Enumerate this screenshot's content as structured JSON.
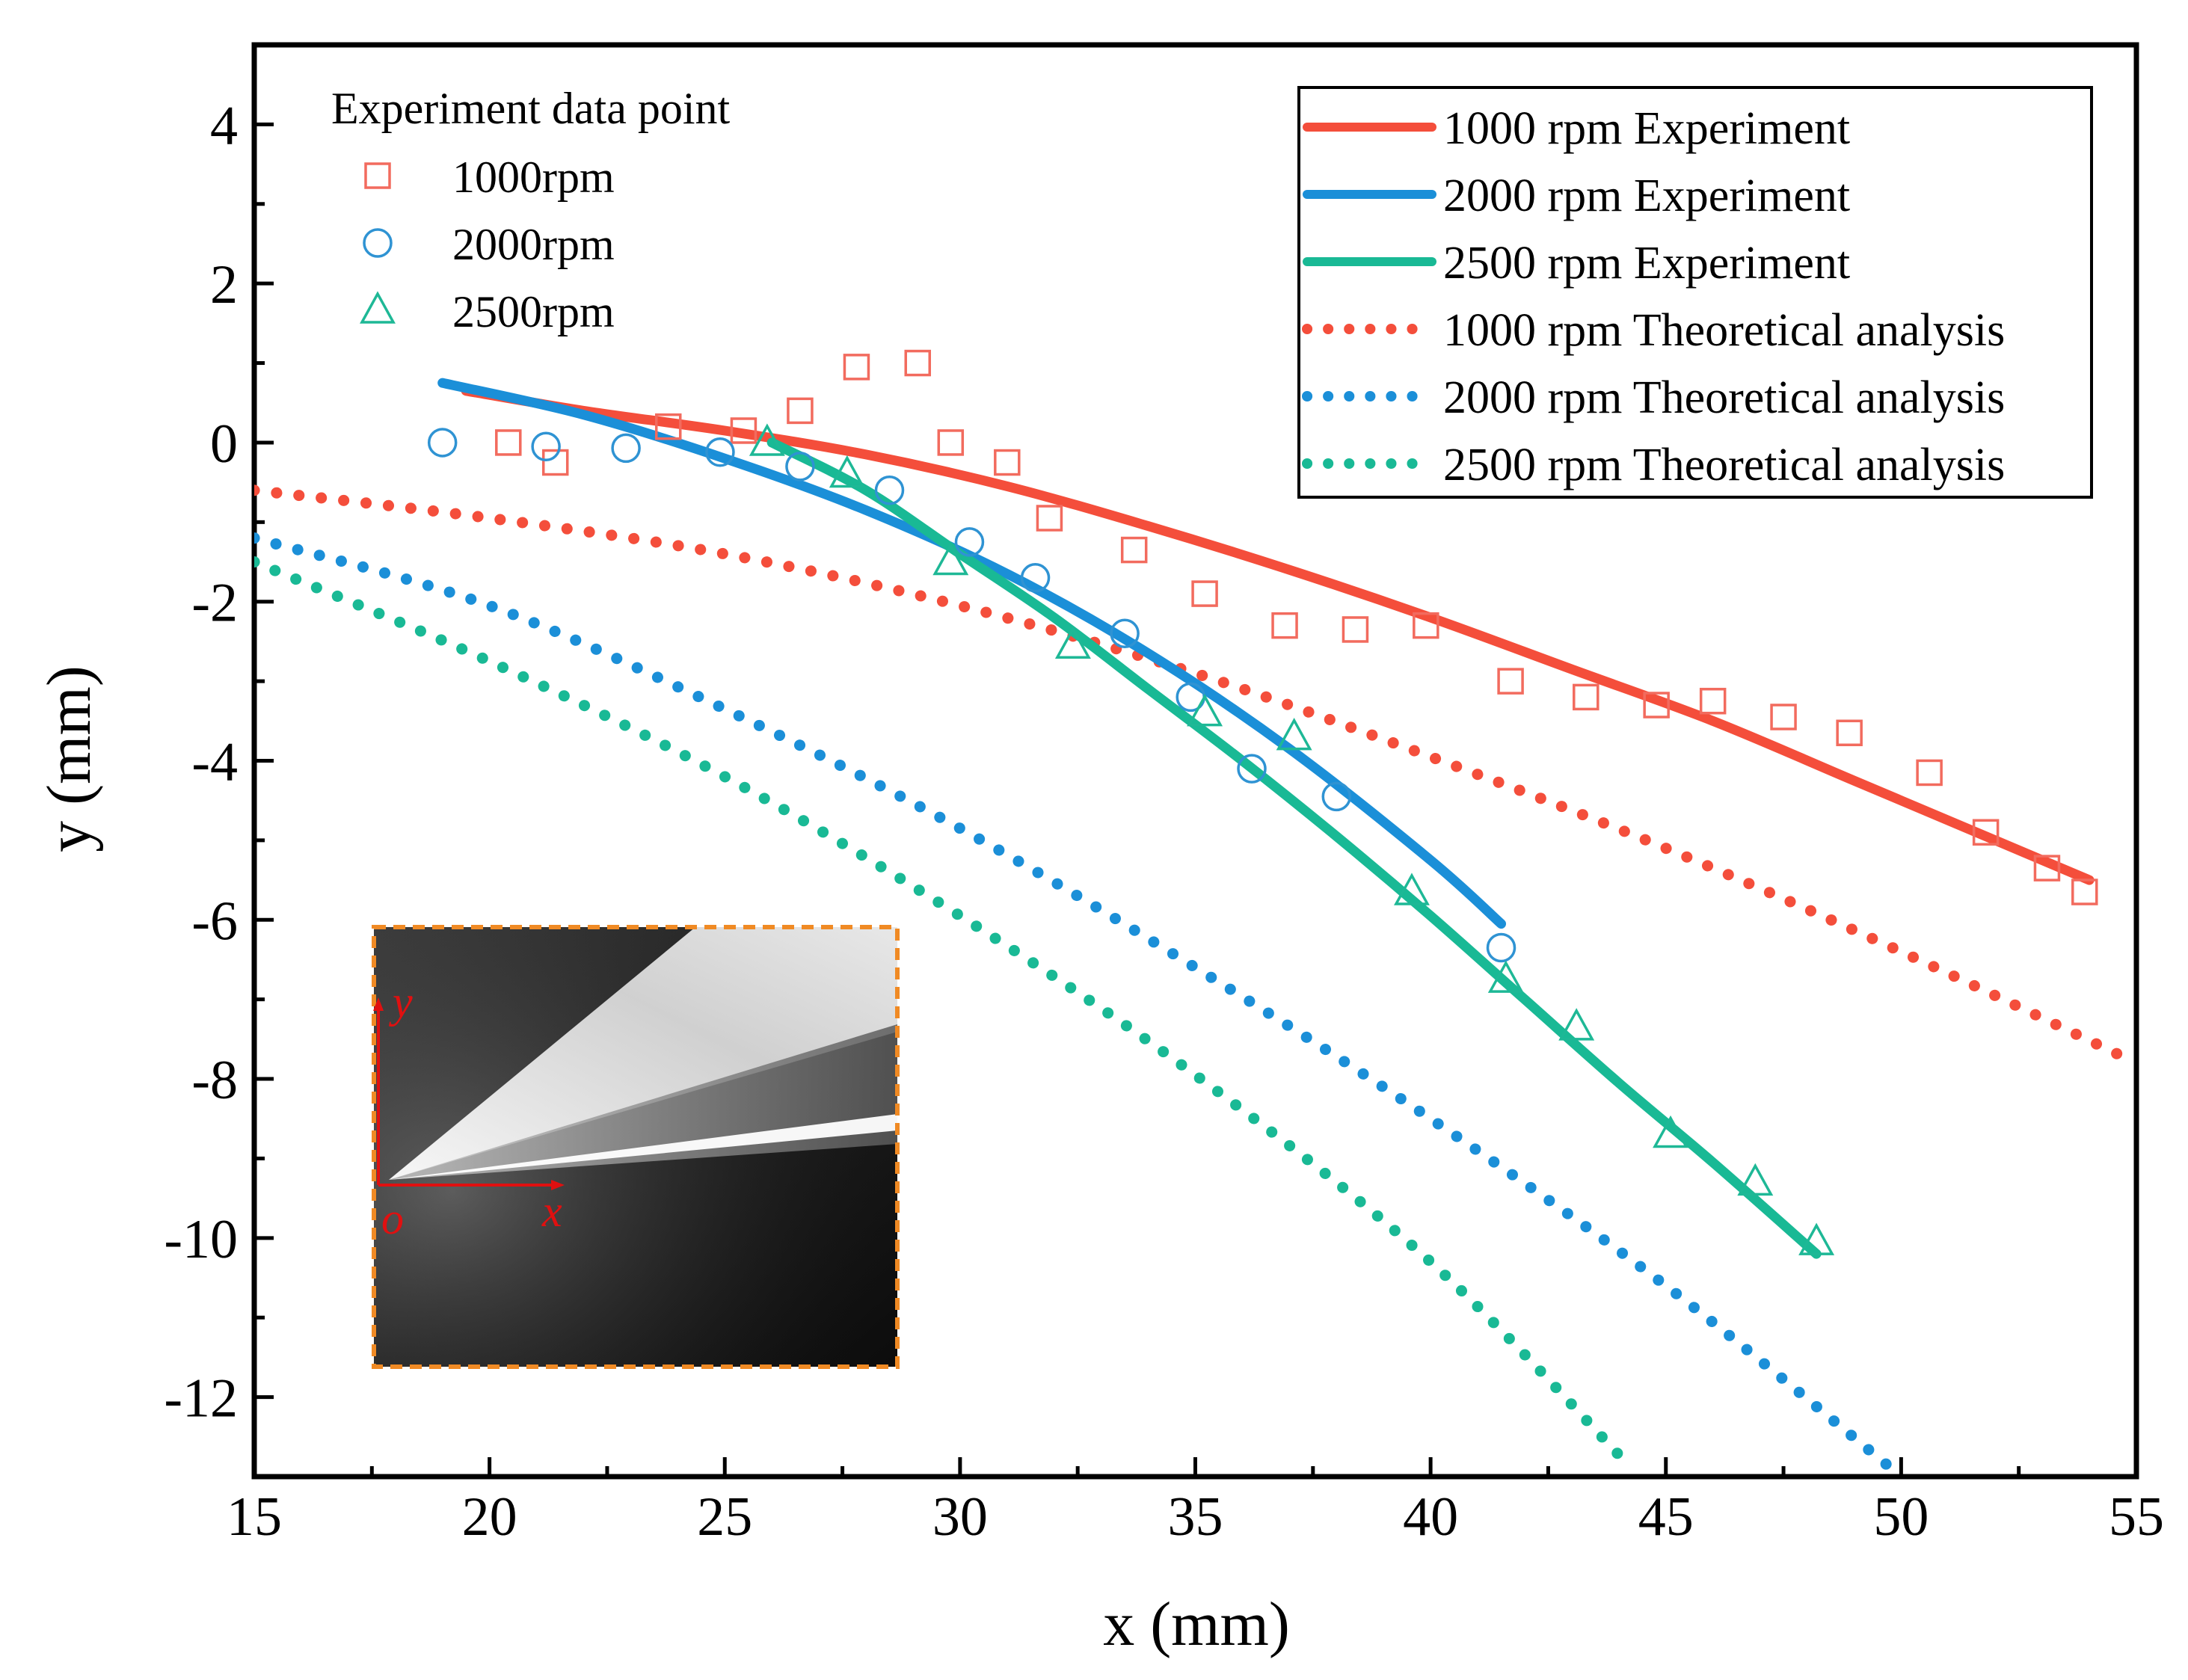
{
  "chart_data": {
    "type": "scatter",
    "xlabel": "x (mm)",
    "ylabel": "y (mm)",
    "xlim": [
      15,
      55
    ],
    "ylim": [
      -13,
      5
    ],
    "xticks": [
      15,
      20,
      25,
      30,
      35,
      40,
      45,
      50,
      55
    ],
    "yticks": [
      4,
      2,
      0,
      -2,
      -4,
      -6,
      -8,
      -10,
      -12
    ],
    "scatter_legend_title": "Experiment data point",
    "scatter_series": [
      {
        "name": "1000rpm",
        "marker": "square",
        "color": "#F26B5E",
        "points": [
          [
            20.4,
            0
          ],
          [
            21.4,
            -0.25
          ],
          [
            23.8,
            0.2
          ],
          [
            25.4,
            0.15
          ],
          [
            26.6,
            0.4
          ],
          [
            27.8,
            0.95
          ],
          [
            29.1,
            1.0
          ],
          [
            29.8,
            0
          ],
          [
            31.0,
            -0.25
          ],
          [
            31.9,
            -0.95
          ],
          [
            33.7,
            -1.35
          ],
          [
            35.2,
            -1.9
          ],
          [
            36.9,
            -2.3
          ],
          [
            38.4,
            -2.35
          ],
          [
            39.9,
            -2.3
          ],
          [
            41.7,
            -3.0
          ],
          [
            43.3,
            -3.2
          ],
          [
            44.8,
            -3.3
          ],
          [
            46.0,
            -3.25
          ],
          [
            47.5,
            -3.45
          ],
          [
            48.9,
            -3.65
          ],
          [
            50.6,
            -4.15
          ],
          [
            51.8,
            -4.9
          ],
          [
            53.1,
            -5.35
          ],
          [
            53.9,
            -5.65
          ]
        ]
      },
      {
        "name": "2000rpm",
        "marker": "circle",
        "color": "#2F93D3",
        "points": [
          [
            19.0,
            0
          ],
          [
            21.2,
            -0.05
          ],
          [
            22.9,
            -0.07
          ],
          [
            24.9,
            -0.12
          ],
          [
            26.6,
            -0.3
          ],
          [
            28.5,
            -0.6
          ],
          [
            30.2,
            -1.25
          ],
          [
            31.6,
            -1.7
          ],
          [
            33.5,
            -2.4
          ],
          [
            34.9,
            -3.2
          ],
          [
            36.2,
            -4.1
          ],
          [
            38.0,
            -4.45
          ],
          [
            41.5,
            -6.35
          ]
        ]
      },
      {
        "name": "2500rpm",
        "marker": "triangle",
        "color": "#1EB896",
        "points": [
          [
            25.9,
            0
          ],
          [
            27.6,
            -0.4
          ],
          [
            29.8,
            -1.5
          ],
          [
            32.4,
            -2.55
          ],
          [
            35.2,
            -3.4
          ],
          [
            37.1,
            -3.7
          ],
          [
            39.6,
            -5.65
          ],
          [
            41.6,
            -6.75
          ],
          [
            43.1,
            -7.35
          ],
          [
            45.1,
            -8.7
          ],
          [
            46.9,
            -9.3
          ],
          [
            48.2,
            -10.05
          ]
        ]
      }
    ],
    "series": [
      {
        "name": "1000 rpm Experiment",
        "style": "solid",
        "color": "#F44E3B",
        "x": [
          19.5,
          22,
          25,
          28,
          31,
          34,
          37,
          40,
          43,
          46,
          49,
          52,
          54
        ],
        "y": [
          0.65,
          0.4,
          0.15,
          -0.15,
          -0.55,
          -1.05,
          -1.6,
          -2.2,
          -2.85,
          -3.5,
          -4.25,
          -5.0,
          -5.5
        ]
      },
      {
        "name": "2000 rpm Experiment",
        "style": "solid",
        "color": "#1B8FD8",
        "x": [
          19,
          22,
          25,
          28,
          31,
          34,
          37,
          40,
          41.5
        ],
        "y": [
          0.75,
          0.35,
          -0.2,
          -0.85,
          -1.65,
          -2.65,
          -3.85,
          -5.25,
          -6.05
        ]
      },
      {
        "name": "2500 rpm Experiment",
        "style": "solid",
        "color": "#19B995",
        "x": [
          26,
          28,
          30,
          32,
          34,
          36,
          38,
          40,
          42,
          44,
          46,
          48.2
        ],
        "y": [
          0.0,
          -0.6,
          -1.4,
          -2.2,
          -3.1,
          -4.0,
          -4.95,
          -5.95,
          -7.0,
          -8.05,
          -9.05,
          -10.2
        ]
      },
      {
        "name": "1000 rpm Theoretical analysis",
        "style": "dotted",
        "color": "#F44E3B",
        "x": [
          15,
          20,
          25,
          30,
          35,
          40,
          45,
          50,
          55
        ],
        "y": [
          -0.6,
          -0.95,
          -1.4,
          -2.05,
          -2.9,
          -3.95,
          -5.1,
          -6.4,
          -7.8
        ]
      },
      {
        "name": "2000 rpm Theoretical analysis",
        "style": "dotted",
        "color": "#1B8FD8",
        "x": [
          15,
          20,
          25,
          30,
          35,
          40,
          45,
          49.8
        ],
        "y": [
          -1.2,
          -2.05,
          -3.35,
          -4.85,
          -6.6,
          -8.5,
          -10.6,
          -12.9
        ]
      },
      {
        "name": "2500 rpm Theoretical analysis",
        "style": "dotted",
        "color": "#19B995",
        "x": [
          15,
          20,
          25,
          30,
          35,
          40,
          44.2
        ],
        "y": [
          -1.5,
          -2.75,
          -4.2,
          -5.95,
          -7.95,
          -10.3,
          -12.85
        ]
      }
    ],
    "inset": {
      "description_labels": [
        "y",
        "o",
        "x"
      ]
    }
  },
  "colors": {
    "r": "#F44E3B",
    "b": "#1B8FD8",
    "g": "#19B995",
    "frame": "#F08A24"
  }
}
